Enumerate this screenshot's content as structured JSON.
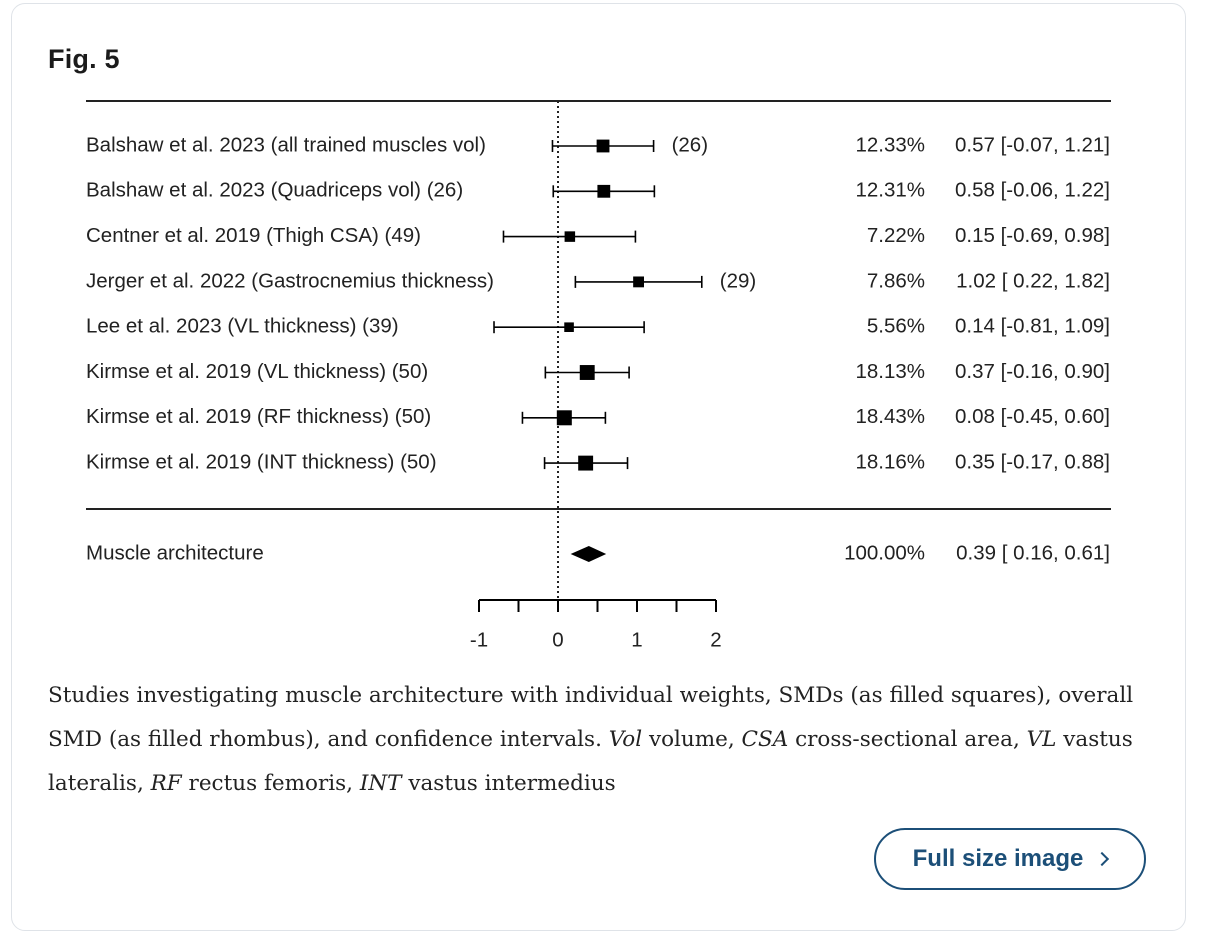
{
  "figure": {
    "label": "Fig. 5"
  },
  "caption": {
    "parts": [
      {
        "text": "Studies investigating muscle architecture with individual weights, SMDs (as filled squares), overall SMD (as filled rhombus), and confidence intervals. ",
        "italic": false
      },
      {
        "text": "Vol",
        "italic": true
      },
      {
        "text": " volume, ",
        "italic": false
      },
      {
        "text": "CSA",
        "italic": true
      },
      {
        "text": " cross-sectional area, ",
        "italic": false
      },
      {
        "text": "VL",
        "italic": true
      },
      {
        "text": " vastus lateralis, ",
        "italic": false
      },
      {
        "text": "RF",
        "italic": true
      },
      {
        "text": " rectus femoris, ",
        "italic": false
      },
      {
        "text": "INT",
        "italic": true
      },
      {
        "text": " vastus intermedius",
        "italic": false
      }
    ]
  },
  "buttons": {
    "full_size_label": "Full size image"
  },
  "colors": {
    "button_accent": "#1c4f78",
    "ink": "#000000"
  },
  "chart_data": {
    "type": "forest",
    "title": "",
    "xlabel": "",
    "xlim": [
      -1,
      2
    ],
    "x_ticks": [
      -1,
      0,
      1,
      2
    ],
    "x_tick_labels": [
      "-1",
      "0",
      "1",
      "2"
    ],
    "reference_line": 0,
    "studies": [
      {
        "label": "Balshaw et al. 2023 (all trained muscles vol)",
        "n_label": "(26)",
        "n_separate": true,
        "smd": 0.57,
        "ci": [
          -0.07,
          1.21
        ],
        "weight": 12.33,
        "weight_label": "12.33%",
        "ci_label": "0.57 [-0.07, 1.21]"
      },
      {
        "label": "Balshaw et al. 2023 (Quadriceps vol)",
        "n_label": "(26)",
        "n_separate": false,
        "smd": 0.58,
        "ci": [
          -0.06,
          1.22
        ],
        "weight": 12.31,
        "weight_label": "12.31%",
        "ci_label": "0.58 [-0.06, 1.22]"
      },
      {
        "label": "Centner et al. 2019 (Thigh CSA)",
        "n_label": "(49)",
        "n_separate": false,
        "smd": 0.15,
        "ci": [
          -0.69,
          0.98
        ],
        "weight": 7.22,
        "weight_label": "7.22%",
        "ci_label": "0.15 [-0.69, 0.98]"
      },
      {
        "label": "Jerger et al. 2022 (Gastrocnemius thickness)",
        "n_label": "(29)",
        "n_separate": true,
        "smd": 1.02,
        "ci": [
          0.22,
          1.82
        ],
        "weight": 7.86,
        "weight_label": "7.86%",
        "ci_label": "1.02 [ 0.22, 1.82]"
      },
      {
        "label": "Lee et al. 2023 (VL thickness)",
        "n_label": "(39)",
        "n_separate": false,
        "smd": 0.14,
        "ci": [
          -0.81,
          1.09
        ],
        "weight": 5.56,
        "weight_label": "5.56%",
        "ci_label": "0.14 [-0.81, 1.09]"
      },
      {
        "label": "Kirmse et al. 2019 (VL thickness)",
        "n_label": "(50)",
        "n_separate": false,
        "smd": 0.37,
        "ci": [
          -0.16,
          0.9
        ],
        "weight": 18.13,
        "weight_label": "18.13%",
        "ci_label": "0.37 [-0.16, 0.90]"
      },
      {
        "label": "Kirmse et al. 2019 (RF thickness)",
        "n_label": "(50)",
        "n_separate": false,
        "smd": 0.08,
        "ci": [
          -0.45,
          0.6
        ],
        "weight": 18.43,
        "weight_label": "18.43%",
        "ci_label": "0.08 [-0.45, 0.60]"
      },
      {
        "label": "Kirmse et al. 2019 (INT thickness)",
        "n_label": "(50)",
        "n_separate": false,
        "smd": 0.35,
        "ci": [
          -0.17,
          0.88
        ],
        "weight": 18.16,
        "weight_label": "18.16%",
        "ci_label": "0.35 [-0.17, 0.88]"
      }
    ],
    "summary": {
      "label": "Muscle architecture",
      "smd": 0.39,
      "ci": [
        0.16,
        0.61
      ],
      "weight": 100.0,
      "weight_label": "100.00%",
      "ci_label": "0.39 [ 0.16, 0.61]"
    },
    "legend": "none"
  }
}
